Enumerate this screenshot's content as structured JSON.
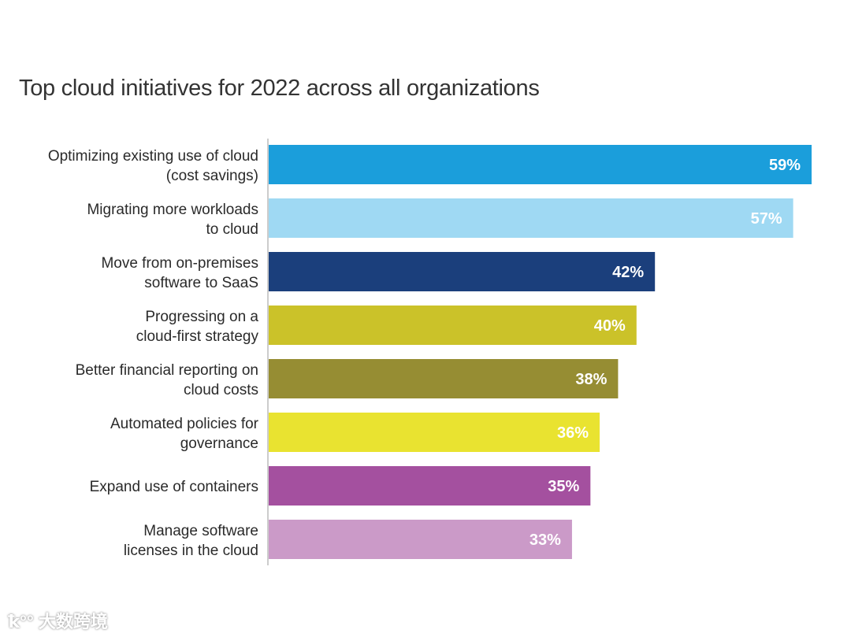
{
  "chart_data": {
    "type": "bar",
    "orientation": "horizontal",
    "title": "Top cloud initiatives for 2022 across all organizations",
    "categories": [
      [
        "Optimizing existing use of cloud",
        "(cost savings)"
      ],
      [
        "Migrating more workloads",
        "to cloud"
      ],
      [
        "Move from on-premises",
        "software to SaaS"
      ],
      [
        "Progressing on a",
        "cloud-first strategy"
      ],
      [
        "Better financial reporting on",
        "cloud costs"
      ],
      [
        "Automated policies for",
        "governance"
      ],
      [
        "Expand use of containers"
      ],
      [
        "Manage software",
        "licenses in the cloud"
      ]
    ],
    "values": [
      59,
      57,
      42,
      40,
      38,
      36,
      35,
      33
    ],
    "value_labels": [
      "59%",
      "57%",
      "42%",
      "40%",
      "38%",
      "36%",
      "35%",
      "33%"
    ],
    "colors": [
      "#1b9edb",
      "#9fd9f3",
      "#1b3f7c",
      "#cbc229",
      "#968d33",
      "#e9e330",
      "#a4509f",
      "#cb9ac8"
    ],
    "xlim": [
      0,
      59
    ],
    "xlabel": "",
    "ylabel": "",
    "grid": false
  },
  "watermark": "大数跨境"
}
